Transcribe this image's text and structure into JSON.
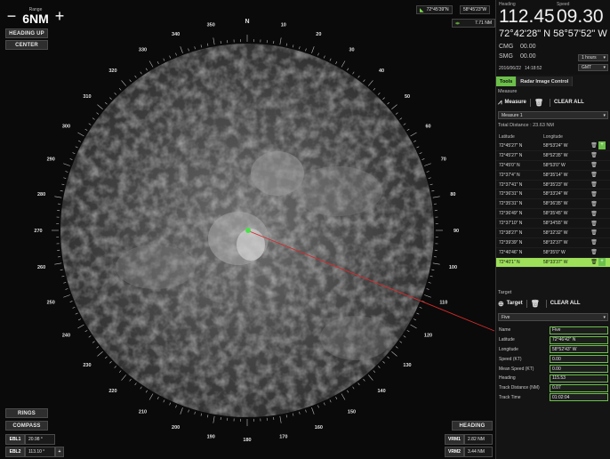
{
  "range": {
    "label": "Range",
    "value": "6NM",
    "minus": "−",
    "plus": "+"
  },
  "left_buttons": {
    "heading_up": "HEADING UP",
    "center": "CENTER",
    "rings": "RINGS",
    "compass": "COMPASS"
  },
  "right_buttons": {
    "heading": "HEADING"
  },
  "position_readout": {
    "lat": "72°45'39\"N",
    "lon": "58°45'23\"W",
    "distance": "7.71 NM"
  },
  "ebl": [
    {
      "label": "EBL1",
      "value": "20.98 °"
    },
    {
      "label": "EBL2",
      "value": "113.10 °",
      "extra": "+"
    }
  ],
  "vrm": [
    {
      "label": "VRM1",
      "value": "2.82 NM"
    },
    {
      "label": "VRM2",
      "value": "3.44 NM"
    }
  ],
  "compass_labels": [
    "N",
    "10",
    "20",
    "30",
    "40",
    "50",
    "60",
    "70",
    "80",
    "90",
    "100",
    "110",
    "120",
    "130",
    "140",
    "150",
    "160",
    "170",
    "180",
    "190",
    "200",
    "210",
    "220",
    "230",
    "240",
    "250",
    "260",
    "270",
    "280",
    "290",
    "300",
    "310",
    "320",
    "330",
    "340",
    "350"
  ],
  "panel": {
    "heading_label": "Heading",
    "speed_label": "Speed",
    "heading_value": "112.45",
    "speed_value": "09.30",
    "latlon": "72°42'28\" N  58°57'52\" W",
    "cmg_label": "CMG",
    "cmg_value": "00.00",
    "smg_label": "SMG",
    "smg_value": "00.00",
    "smg_period": "1 hours",
    "date": "2016/06/22",
    "time": "14:18:52",
    "timezone": "GMT",
    "tabs": [
      "Tools",
      "Radar Image Control"
    ],
    "measure_section": "Measure",
    "measure_btn": "Measure",
    "clear_all": "CLEAR ALL",
    "measure_select": "Measure 1",
    "total_distance": "Total Distance : 23.63 NM",
    "col_lat": "Latitude",
    "col_lon": "Longitude",
    "measure_rows": [
      [
        "72°45'27\" N",
        "58°53'24\" W"
      ],
      [
        "72°45'27\" N",
        "58°52'35\" W"
      ],
      [
        "72°45'0\" N",
        "58°53'0\" W"
      ],
      [
        "72°37'4\" N",
        "58°35'14\" W"
      ],
      [
        "72°37'41\" N",
        "58°35'23\" W"
      ],
      [
        "72°36'31\" N",
        "58°33'24\" W"
      ],
      [
        "72°35'31\" N",
        "58°36'35\" W"
      ],
      [
        "72°36'49\" N",
        "58°35'45\" W"
      ],
      [
        "72°37'10\" N",
        "58°34'55\" W"
      ],
      [
        "72°38'27\" N",
        "58°32'32\" W"
      ],
      [
        "72°39'39\" N",
        "58°32'37\" W"
      ],
      [
        "72°40'46\" N",
        "58°35'0\" W"
      ],
      [
        "72°40'1\" N",
        "58°33'37\" W"
      ]
    ],
    "target_section": "Target",
    "target_btn": "Target",
    "target_select": "Five",
    "target_fields": [
      {
        "label": "Name",
        "value": "Five"
      },
      {
        "label": "Latitude",
        "value": "72°46'42\" N"
      },
      {
        "label": "Longitude",
        "value": "58°52'43\" W"
      },
      {
        "label": "Speed (KT)",
        "value": "0.00"
      },
      {
        "label": "Mean Speed (KT)",
        "value": "0.00"
      },
      {
        "label": "Heading",
        "value": "115.53"
      },
      {
        "label": "Track Distance (NM)",
        "value": "0.07"
      },
      {
        "label": "Track Time",
        "value": "01:02:04"
      }
    ]
  },
  "colors": {
    "accent": "#6cc04a",
    "selected_row": "#9ee05a",
    "bearing_line": "#d62a2a"
  }
}
